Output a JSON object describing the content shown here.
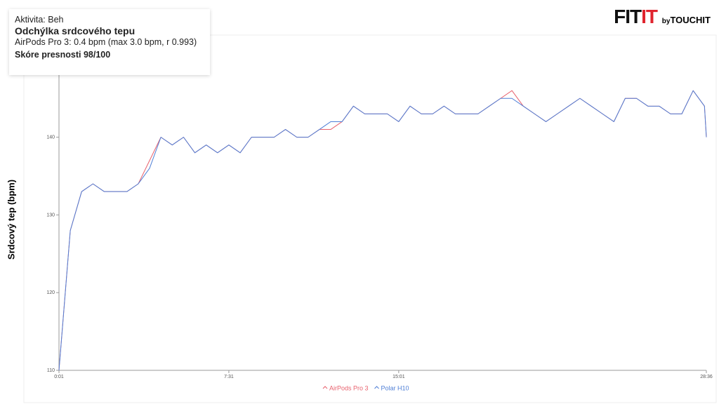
{
  "header": {
    "logo": {
      "fit": "FIT",
      "it": "IT",
      "by": "by",
      "touchit": "TOUCHIT"
    }
  },
  "stats": {
    "activity": "Aktivita: Beh",
    "title": "Odchýlka srdcového tepu",
    "deviation": "AirPods Pro 3: 0.4 bpm  (max 3.0 bpm, r 0.993)",
    "score": "Skóre presnosti 98/100"
  },
  "chart_data": {
    "type": "line",
    "y_label": "Srdcový tep (bpm)",
    "grid": false,
    "legend": "bottom",
    "x": [
      1,
      31,
      61,
      91,
      121,
      151,
      181,
      211,
      241,
      271,
      301,
      331,
      361,
      391,
      421,
      451,
      481,
      511,
      541,
      571,
      601,
      631,
      661,
      691,
      721,
      751,
      781,
      811,
      841,
      871,
      901,
      931,
      961,
      991,
      1021,
      1051,
      1081,
      1111,
      1141,
      1171,
      1201,
      1231,
      1261,
      1291,
      1321,
      1351,
      1381,
      1411,
      1441,
      1471,
      1501,
      1531,
      1561,
      1591,
      1621,
      1651,
      1681,
      1711,
      1716
    ],
    "xlim": [
      1,
      1716
    ],
    "xticks": [
      {
        "value": 1,
        "label": "0:01"
      },
      {
        "value": 451,
        "label": "7:31"
      },
      {
        "value": 901,
        "label": "15:01"
      },
      {
        "value": 1716,
        "label": "28:36"
      }
    ],
    "ylim": [
      110,
      148
    ],
    "yticks": [
      110,
      120,
      130,
      140
    ],
    "series": [
      {
        "name": "AirPods Pro 3",
        "color": "#e8616d",
        "values": [
          110,
          128,
          133,
          134,
          133,
          133,
          133,
          134,
          137,
          140,
          139,
          140,
          138,
          139,
          138,
          139,
          138,
          140,
          140,
          140,
          141,
          140,
          140,
          141,
          141,
          142,
          144,
          143,
          143,
          143,
          142,
          144,
          143,
          143,
          144,
          143,
          143,
          143,
          144,
          145,
          146,
          144,
          143,
          142,
          143,
          144,
          145,
          144,
          143,
          142,
          145,
          145,
          144,
          144,
          143,
          143,
          146,
          144,
          140
        ]
      },
      {
        "name": "Polar H10",
        "color": "#4f7fd6",
        "values": [
          110,
          128,
          133,
          134,
          133,
          133,
          133,
          134,
          136,
          140,
          139,
          140,
          138,
          139,
          138,
          139,
          138,
          140,
          140,
          140,
          141,
          140,
          140,
          141,
          142,
          142,
          144,
          143,
          143,
          143,
          142,
          144,
          143,
          143,
          144,
          143,
          143,
          143,
          144,
          145,
          145,
          144,
          143,
          142,
          143,
          144,
          145,
          144,
          143,
          142,
          145,
          145,
          144,
          144,
          143,
          143,
          146,
          144,
          140
        ]
      }
    ]
  }
}
